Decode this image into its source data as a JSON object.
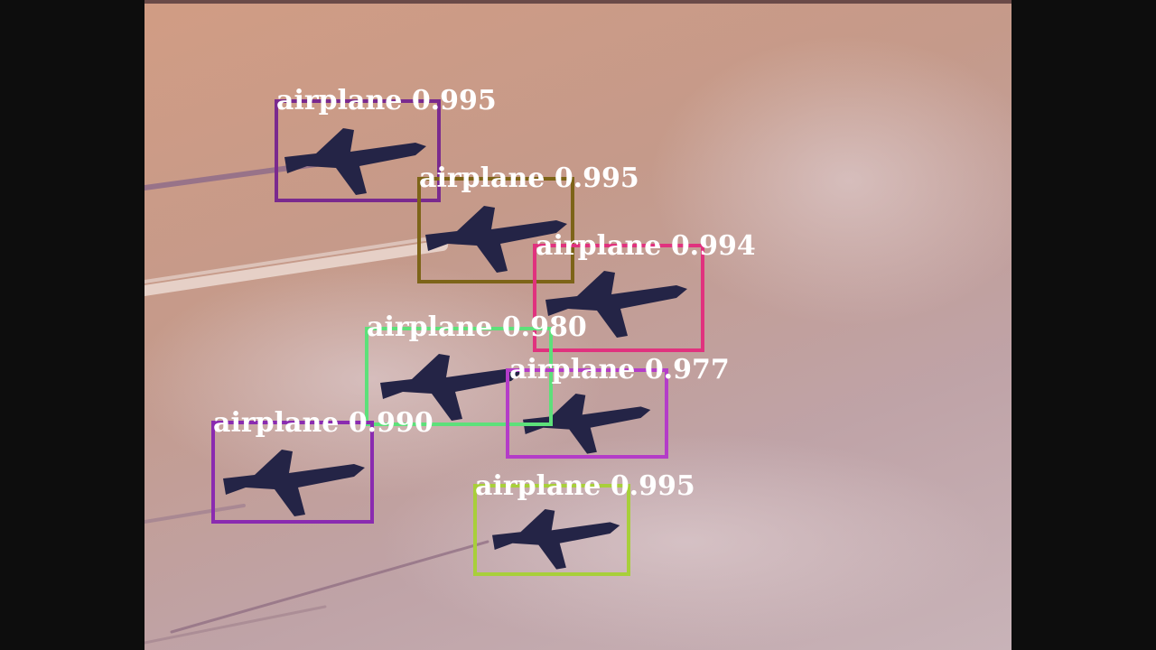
{
  "detections": [
    {
      "label": "airplane",
      "score": "0.995",
      "color": "#7a2a8e"
    },
    {
      "label": "airplane",
      "score": "0.995",
      "color": "#7d6418"
    },
    {
      "label": "airplane",
      "score": "0.994",
      "color": "#e0327e"
    },
    {
      "label": "airplane",
      "score": "0.980",
      "color": "#5de07a"
    },
    {
      "label": "airplane",
      "score": "0.977",
      "color": "#b43cc8"
    },
    {
      "label": "airplane",
      "score": "0.990",
      "color": "#8a2bb0"
    },
    {
      "label": "airplane",
      "score": "0.995",
      "color": "#a8cf3a"
    }
  ],
  "colors": {
    "letterbox": "#0d0d0d",
    "label_text": "#ffffff",
    "jet": "#242446"
  }
}
